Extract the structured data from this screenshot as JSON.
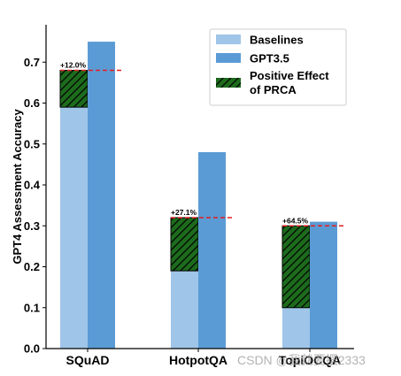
{
  "chart_data": {
    "type": "bar",
    "categories": [
      "SQuAD",
      "HotpotQA",
      "TopiOCQA"
    ],
    "ylabel": "GPT4 Assessment Accuracy",
    "xlabel": "",
    "ylim": [
      0,
      0.8
    ],
    "yticks": [
      "0.0",
      "0.1",
      "0.2",
      "0.3",
      "0.4",
      "0.5",
      "0.6",
      "0.7"
    ],
    "ytick_values": [
      0.0,
      0.1,
      0.2,
      0.3,
      0.4,
      0.5,
      0.6,
      0.7
    ],
    "grid": false,
    "legend_position": "top-right",
    "series": [
      {
        "name": "Baselines",
        "values": [
          0.59,
          0.19,
          0.1
        ]
      },
      {
        "name": "GPT3.5",
        "values": [
          0.75,
          0.48,
          0.31
        ]
      },
      {
        "name": "Positive Effect of PRCA",
        "values": [
          0.09,
          0.13,
          0.2
        ],
        "stacked_on": "Baselines",
        "hatched": true
      }
    ],
    "reference_lines": [
      0.68,
      0.32,
      0.3
    ],
    "annotations": [
      "+12.0%",
      "+27.1%",
      "+64.5%"
    ],
    "legend": [
      "Baselines",
      "GPT3.5",
      "Positive Effect",
      "of PRCA"
    ],
    "colors": {
      "baselines": "#9fc5e8",
      "gpt35": "#5b9bd5",
      "prca": "#1d6b1d",
      "hatch": "#000000",
      "reference_line": "#e02020"
    }
  },
  "watermark": "CSDN @我就要摆2333"
}
